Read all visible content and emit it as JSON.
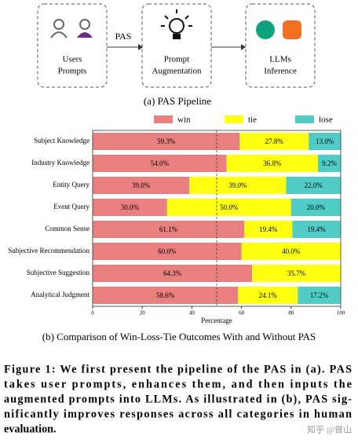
{
  "pipeline": {
    "nodes": [
      {
        "label": [
          "Users",
          "Prompts"
        ]
      },
      {
        "label": [
          "Prompt",
          "Augmentation"
        ]
      },
      {
        "label": [
          "LLMs",
          "Inference"
        ]
      }
    ],
    "edge_label": "PAS",
    "caption": "(a) PAS Pipeline"
  },
  "chart_data": {
    "type": "stacked-barh",
    "x_label": "Percentage",
    "categories": [
      "Subject Knowledge",
      "Industry Knowledge",
      "Entity Query",
      "Event Query",
      "Common Sense",
      "Subjective Recommendation",
      "Subjective Suggestion",
      "Analytical Judgment"
    ],
    "series": [
      {
        "name": "win",
        "color": "#ea7f80",
        "values": [
          59.3,
          54.0,
          39.0,
          30.0,
          61.1,
          60.0,
          64.3,
          58.6
        ],
        "value_labels": [
          "59.3%",
          "54.0%",
          "39.0%",
          "30.0%",
          "61.1%",
          "60.0%",
          "64.3%",
          "58.6%"
        ]
      },
      {
        "name": "tie",
        "color": "#ffff0f",
        "values": [
          27.8,
          36.8,
          39.0,
          50.0,
          19.4,
          40.0,
          35.7,
          24.1
        ],
        "value_labels": [
          "27.8%",
          "36.8%",
          "39.0%",
          "50.0%",
          "19.4%",
          "40.0%",
          "35.7%",
          "24.1%"
        ]
      },
      {
        "name": "lose",
        "color": "#50cbc6",
        "values": [
          13.0,
          9.2,
          22.0,
          20.0,
          19.4,
          0,
          0,
          17.2
        ],
        "value_labels": [
          "13.0%",
          "9.2%",
          "22.0%",
          "20.0%",
          "19.4%",
          null,
          null,
          "17.2%"
        ]
      }
    ],
    "xlim": [
      0,
      100
    ],
    "xticks": [
      0,
      20,
      40,
      60,
      80,
      100
    ],
    "reference_line": 50,
    "caption": "(b) Comparison of Win-Loss-Tie Outcomes With and Without PAS"
  },
  "figure_caption": {
    "lines": [
      "Figure 1: We first present the pipeline of the PAS in (a). PAS",
      "takes user prompts, enhances them, and then inputs the",
      "augmented prompts into LLMs. As illustrated in (b), PAS sig-",
      "nificantly improves responses across all categories in human",
      "evaluation."
    ]
  },
  "watermark": "知乎 @曾山"
}
